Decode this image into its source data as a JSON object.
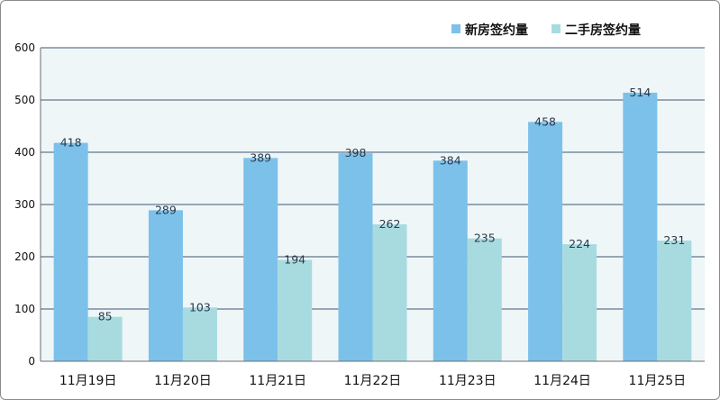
{
  "chart_data": {
    "type": "bar",
    "categories": [
      "11月19日",
      "11月20日",
      "11月21日",
      "11月22日",
      "11月23日",
      "11月24日",
      "11月25日"
    ],
    "series": [
      {
        "name": "新房签约量",
        "values": [
          418,
          289,
          389,
          398,
          384,
          458,
          514
        ],
        "color": "#7cc1ea"
      },
      {
        "name": "二手房签约量",
        "values": [
          85,
          103,
          194,
          262,
          235,
          224,
          231
        ],
        "color": "#a8dbe0"
      }
    ],
    "y_ticks": [
      "0",
      "100",
      "200",
      "300",
      "400",
      "500",
      "600"
    ],
    "ylim": [
      0,
      600
    ],
    "legend_position": "top-right",
    "grid": true,
    "plot_background": "#eef6f8",
    "grid_color": "#3d5670"
  }
}
